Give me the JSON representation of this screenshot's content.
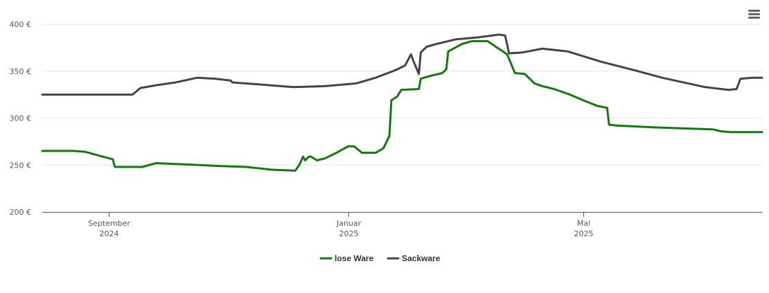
{
  "toolbar": {
    "menu_icon": "hamburger-menu-icon"
  },
  "chart_data": {
    "type": "line",
    "title": "",
    "xlabel": "",
    "ylabel": "",
    "ylim": [
      200,
      400
    ],
    "yticks": [
      200,
      250,
      300,
      350,
      400
    ],
    "y_unit": "€",
    "ytick_labels": [
      "200 €",
      "250 €",
      "300 €",
      "350 €",
      "400 €"
    ],
    "xlim": [
      "2024-07-29",
      "2025-07-31"
    ],
    "xticks": [
      {
        "date": "2024-09-01",
        "line1": "September",
        "line2": "2024"
      },
      {
        "date": "2025-01-01",
        "line1": "Januar",
        "line2": "2025"
      },
      {
        "date": "2025-05-01",
        "line1": "Mai",
        "line2": "2025"
      }
    ],
    "grid": true,
    "legend": "bottom-center",
    "series": [
      {
        "name": "lose Ware",
        "color": "#117a0c",
        "points": [
          [
            "2024-07-29",
            265
          ],
          [
            "2024-08-14",
            265
          ],
          [
            "2024-08-20",
            264
          ],
          [
            "2024-08-27",
            260
          ],
          [
            "2024-09-03",
            256
          ],
          [
            "2024-09-04",
            248
          ],
          [
            "2024-09-18",
            248
          ],
          [
            "2024-09-25",
            252
          ],
          [
            "2024-10-17",
            250
          ],
          [
            "2024-10-27",
            249
          ],
          [
            "2024-11-10",
            248
          ],
          [
            "2024-11-23",
            245
          ],
          [
            "2024-12-05",
            244
          ],
          [
            "2024-12-07",
            250
          ],
          [
            "2024-12-09",
            259
          ],
          [
            "2024-12-10",
            255
          ],
          [
            "2024-12-12",
            259
          ],
          [
            "2024-12-13",
            259
          ],
          [
            "2024-12-16",
            255
          ],
          [
            "2024-12-20",
            257
          ],
          [
            "2024-12-26",
            263
          ],
          [
            "2025-01-01",
            270
          ],
          [
            "2025-01-04",
            270
          ],
          [
            "2025-01-08",
            263
          ],
          [
            "2025-01-15",
            263
          ],
          [
            "2025-01-19",
            268
          ],
          [
            "2025-01-22",
            281
          ],
          [
            "2025-01-23",
            319
          ],
          [
            "2025-01-26",
            323
          ],
          [
            "2025-01-28",
            330
          ],
          [
            "2025-02-06",
            331
          ],
          [
            "2025-02-07",
            342
          ],
          [
            "2025-02-12",
            345
          ],
          [
            "2025-02-18",
            348
          ],
          [
            "2025-02-20",
            352
          ],
          [
            "2025-02-21",
            371
          ],
          [
            "2025-02-28",
            379
          ],
          [
            "2025-03-05",
            382
          ],
          [
            "2025-03-13",
            382
          ],
          [
            "2025-03-23",
            368
          ],
          [
            "2025-03-27",
            348
          ],
          [
            "2025-04-01",
            347
          ],
          [
            "2025-04-06",
            337
          ],
          [
            "2025-04-10",
            334
          ],
          [
            "2025-04-16",
            331
          ],
          [
            "2025-04-24",
            325
          ],
          [
            "2025-05-02",
            318
          ],
          [
            "2025-05-08",
            313
          ],
          [
            "2025-05-13",
            311
          ],
          [
            "2025-05-14",
            293
          ],
          [
            "2025-05-18",
            292
          ],
          [
            "2025-06-08",
            290
          ],
          [
            "2025-07-06",
            288
          ],
          [
            "2025-07-10",
            286
          ],
          [
            "2025-07-15",
            285
          ],
          [
            "2025-07-31",
            285
          ]
        ]
      },
      {
        "name": "Sackware",
        "color": "#434348",
        "points": [
          [
            "2024-07-29",
            325
          ],
          [
            "2024-09-07",
            325
          ],
          [
            "2024-09-13",
            325
          ],
          [
            "2024-09-17",
            332
          ],
          [
            "2024-09-25",
            335
          ],
          [
            "2024-10-05",
            338
          ],
          [
            "2024-10-16",
            343
          ],
          [
            "2024-10-25",
            342
          ],
          [
            "2024-11-02",
            340
          ],
          [
            "2024-11-03",
            338
          ],
          [
            "2024-11-16",
            336
          ],
          [
            "2024-12-04",
            333
          ],
          [
            "2024-12-20",
            334
          ],
          [
            "2025-01-05",
            337
          ],
          [
            "2025-01-15",
            343
          ],
          [
            "2025-01-25",
            351
          ],
          [
            "2025-01-30",
            356
          ],
          [
            "2025-02-02",
            368
          ],
          [
            "2025-02-03",
            362
          ],
          [
            "2025-02-06",
            347
          ],
          [
            "2025-02-07",
            370
          ],
          [
            "2025-02-10",
            376
          ],
          [
            "2025-02-15",
            379
          ],
          [
            "2025-02-25",
            384
          ],
          [
            "2025-03-08",
            386
          ],
          [
            "2025-03-19",
            389
          ],
          [
            "2025-03-22",
            388
          ],
          [
            "2025-03-24",
            369
          ],
          [
            "2025-03-31",
            370
          ],
          [
            "2025-04-10",
            374
          ],
          [
            "2025-04-23",
            371
          ],
          [
            "2025-05-10",
            360
          ],
          [
            "2025-05-27",
            351
          ],
          [
            "2025-06-10",
            343
          ],
          [
            "2025-07-02",
            333
          ],
          [
            "2025-07-14",
            330
          ],
          [
            "2025-07-18",
            331
          ],
          [
            "2025-07-20",
            342
          ],
          [
            "2025-07-26",
            343
          ],
          [
            "2025-07-31",
            343
          ]
        ]
      }
    ]
  }
}
